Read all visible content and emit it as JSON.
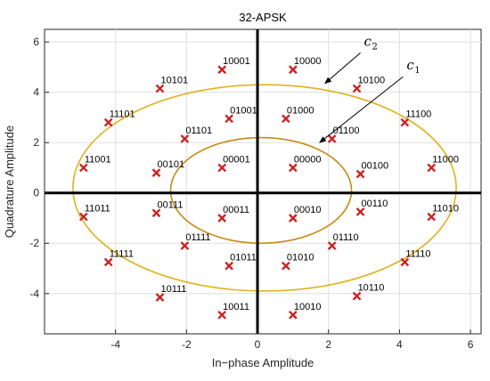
{
  "chart_data": {
    "type": "scatter",
    "title": "32-APSK",
    "xlabel": "In−phase Amplitude",
    "ylabel": "Quadrature Amplitude",
    "xlim": [
      -6,
      6.3
    ],
    "ylim": [
      -5.6,
      6.5
    ],
    "xticks": [
      -4,
      -2,
      0,
      2,
      4,
      6
    ],
    "yticks": [
      -4,
      -2,
      0,
      2,
      4,
      6
    ],
    "marker_color": "#cc2222",
    "circle_inner_color": "#c88a12",
    "circle_outer_color": "#e0b21e",
    "circles": [
      {
        "name": "c1",
        "main": "c",
        "sub": "1",
        "cx": 0.1,
        "cy": 0.1,
        "rx": 2.55,
        "ry": 2.1
      },
      {
        "name": "c2",
        "main": "c",
        "sub": "2",
        "cx": 0.2,
        "cy": 0.2,
        "rx": 5.4,
        "ry": 4.1
      }
    ],
    "annotations": [
      {
        "label": "c1",
        "label_x": 4.2,
        "label_y": 4.9,
        "arrow_to_x": 1.75,
        "arrow_to_y": 2.0
      },
      {
        "label": "c2",
        "label_x": 3.0,
        "label_y": 5.85,
        "arrow_to_x": 1.9,
        "arrow_to_y": 4.35
      }
    ],
    "points": [
      {
        "label": "00000",
        "x": 1.0,
        "y": 1.0
      },
      {
        "label": "00001",
        "x": -1.0,
        "y": 1.0
      },
      {
        "label": "00011",
        "x": -1.0,
        "y": -1.0
      },
      {
        "label": "00010",
        "x": 1.0,
        "y": -1.0
      },
      {
        "label": "01000",
        "x": 0.8,
        "y": 2.95
      },
      {
        "label": "01001",
        "x": -0.8,
        "y": 2.95
      },
      {
        "label": "01101",
        "x": -2.05,
        "y": 2.15
      },
      {
        "label": "00101",
        "x": -2.85,
        "y": 0.8
      },
      {
        "label": "00111",
        "x": -2.85,
        "y": -0.8
      },
      {
        "label": "01111",
        "x": -2.05,
        "y": -2.1
      },
      {
        "label": "01011",
        "x": -0.8,
        "y": -2.9
      },
      {
        "label": "01010",
        "x": 0.8,
        "y": -2.9
      },
      {
        "label": "01110",
        "x": 2.1,
        "y": -2.1
      },
      {
        "label": "00110",
        "x": 2.9,
        "y": -0.75
      },
      {
        "label": "00100",
        "x": 2.9,
        "y": 0.75
      },
      {
        "label": "01100",
        "x": 2.1,
        "y": 2.15
      },
      {
        "label": "10000",
        "x": 1.0,
        "y": 4.9
      },
      {
        "label": "10001",
        "x": -1.0,
        "y": 4.9
      },
      {
        "label": "10101",
        "x": -2.75,
        "y": 4.15
      },
      {
        "label": "11101",
        "x": -4.2,
        "y": 2.8
      },
      {
        "label": "11001",
        "x": -4.9,
        "y": 1.0
      },
      {
        "label": "11011",
        "x": -4.9,
        "y": -0.95
      },
      {
        "label": "11111",
        "x": -4.2,
        "y": -2.75
      },
      {
        "label": "10111",
        "x": -2.75,
        "y": -4.15
      },
      {
        "label": "10011",
        "x": -1.0,
        "y": -4.85
      },
      {
        "label": "10010",
        "x": 1.0,
        "y": -4.85
      },
      {
        "label": "10110",
        "x": 2.8,
        "y": -4.1
      },
      {
        "label": "11110",
        "x": 4.15,
        "y": -2.75
      },
      {
        "label": "11010",
        "x": 4.9,
        "y": -0.95
      },
      {
        "label": "11000",
        "x": 4.9,
        "y": 1.0
      },
      {
        "label": "11100",
        "x": 4.15,
        "y": 2.8
      },
      {
        "label": "10100",
        "x": 2.8,
        "y": 4.15
      }
    ]
  }
}
